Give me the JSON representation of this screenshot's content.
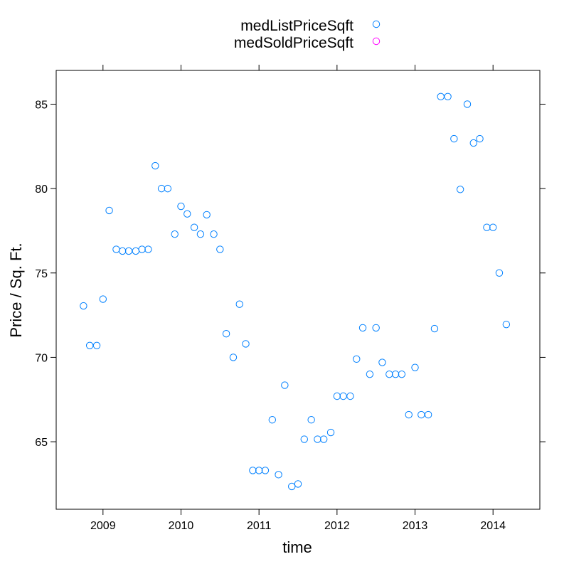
{
  "chart_data": {
    "type": "scatter",
    "xlabel": "time",
    "ylabel": "Price / Sq. Ft.",
    "xlim": [
      2008.4,
      2014.6
    ],
    "ylim": [
      61,
      87
    ],
    "x_ticks": [
      2009,
      2010,
      2011,
      2012,
      2013,
      2014
    ],
    "y_ticks": [
      65,
      70,
      75,
      80,
      85
    ],
    "grid": false,
    "legend_position": "top-center",
    "series": [
      {
        "name": "medListPriceSqft",
        "color": "#0080ff",
        "marker": "open-circle",
        "points": [
          [
            2008.75,
            73.05
          ],
          [
            2008.83,
            70.7
          ],
          [
            2008.92,
            70.7
          ],
          [
            2009.0,
            73.45
          ],
          [
            2009.08,
            78.7
          ],
          [
            2009.17,
            76.4
          ],
          [
            2009.25,
            76.3
          ],
          [
            2009.33,
            76.3
          ],
          [
            2009.42,
            76.3
          ],
          [
            2009.5,
            76.4
          ],
          [
            2009.58,
            76.4
          ],
          [
            2009.67,
            81.35
          ],
          [
            2009.75,
            80.0
          ],
          [
            2009.83,
            80.0
          ],
          [
            2009.92,
            77.3
          ],
          [
            2010.0,
            78.95
          ],
          [
            2010.08,
            78.5
          ],
          [
            2010.17,
            77.7
          ],
          [
            2010.25,
            77.3
          ],
          [
            2010.33,
            78.45
          ],
          [
            2010.42,
            77.3
          ],
          [
            2010.5,
            76.4
          ],
          [
            2010.58,
            71.4
          ],
          [
            2010.67,
            70.0
          ],
          [
            2010.75,
            73.15
          ],
          [
            2010.83,
            70.8
          ],
          [
            2010.92,
            63.3
          ],
          [
            2011.0,
            63.3
          ],
          [
            2011.08,
            63.3
          ],
          [
            2011.17,
            66.3
          ],
          [
            2011.25,
            63.05
          ],
          [
            2011.33,
            68.35
          ],
          [
            2011.42,
            62.35
          ],
          [
            2011.5,
            62.5
          ],
          [
            2011.58,
            65.15
          ],
          [
            2011.67,
            66.3
          ],
          [
            2011.75,
            65.15
          ],
          [
            2011.83,
            65.15
          ],
          [
            2011.92,
            65.55
          ],
          [
            2012.0,
            67.7
          ],
          [
            2012.08,
            67.7
          ],
          [
            2012.17,
            67.7
          ],
          [
            2012.25,
            69.9
          ],
          [
            2012.33,
            71.75
          ],
          [
            2012.42,
            69.0
          ],
          [
            2012.5,
            71.75
          ],
          [
            2012.58,
            69.7
          ],
          [
            2012.67,
            69.0
          ],
          [
            2012.75,
            69.0
          ],
          [
            2012.83,
            69.0
          ],
          [
            2012.92,
            66.6
          ],
          [
            2013.0,
            69.4
          ],
          [
            2013.08,
            66.6
          ],
          [
            2013.17,
            66.6
          ],
          [
            2013.25,
            71.7
          ],
          [
            2013.33,
            85.45
          ],
          [
            2013.42,
            85.45
          ],
          [
            2013.5,
            82.95
          ],
          [
            2013.58,
            79.95
          ],
          [
            2013.67,
            85.0
          ],
          [
            2013.75,
            82.7
          ],
          [
            2013.83,
            82.95
          ],
          [
            2013.92,
            77.7
          ],
          [
            2014.0,
            77.7
          ],
          [
            2014.08,
            75.0
          ],
          [
            2014.17,
            71.95
          ]
        ]
      },
      {
        "name": "medSoldPriceSqft",
        "color": "#ff00ff",
        "marker": "open-circle",
        "points": []
      }
    ]
  }
}
